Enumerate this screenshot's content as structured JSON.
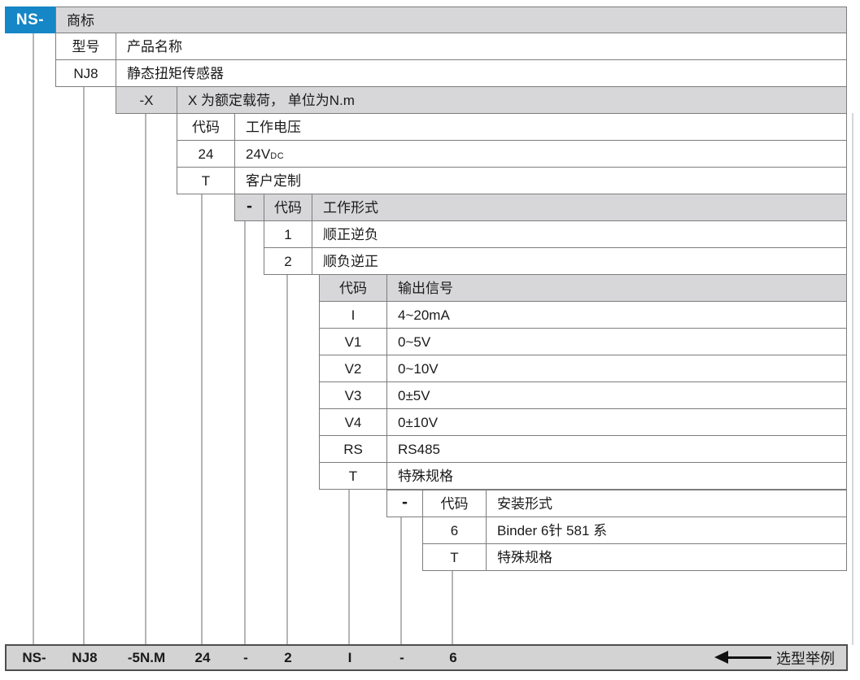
{
  "colors": {
    "accent_blue": "#1586c6",
    "header_gray": "#d7d7d9",
    "bar_gray": "#d3d3d3",
    "border_gray": "#7d7d7d",
    "connector_gray": "#b3b6b9",
    "text": "#1a1a1a"
  },
  "diagram": {
    "tables": [
      {
        "id": "trademark",
        "rows": [
          {
            "c": "NS-",
            "d": "商标"
          }
        ]
      },
      {
        "id": "model",
        "rows": [
          {
            "c": "型号",
            "d": "产品名称"
          },
          {
            "c": "NJ8",
            "d": "静态扭矩传感器"
          }
        ]
      },
      {
        "id": "rated-load",
        "rows": [
          {
            "c": "-X",
            "d": "X 为额定载荷， 单位为N.m"
          }
        ]
      },
      {
        "id": "supply-voltage",
        "rows": [
          {
            "c": "代码",
            "d": "工作电压"
          },
          {
            "c": "24",
            "d": "24V",
            "sub": "DC"
          },
          {
            "c": "T",
            "d": "客户定制"
          }
        ]
      },
      {
        "id": "work-mode",
        "rows": [
          {
            "dash": "-",
            "c": "代码",
            "d": "工作形式"
          },
          {
            "c": "1",
            "d": "顺正逆负"
          },
          {
            "c": "2",
            "d": "顺负逆正"
          }
        ]
      },
      {
        "id": "output-signal",
        "rows": [
          {
            "c": "代码",
            "d": "输出信号"
          },
          {
            "c": "I",
            "d": "4~20mA"
          },
          {
            "c": "V1",
            "d": "0~5V"
          },
          {
            "c": "V2",
            "d": "0~10V"
          },
          {
            "c": "V3",
            "d": "0±5V"
          },
          {
            "c": "V4",
            "d": "0±10V"
          },
          {
            "c": "RS",
            "d": "RS485"
          },
          {
            "c": "T",
            "d": "特殊规格"
          }
        ]
      },
      {
        "id": "mounting",
        "rows": [
          {
            "dash": "-",
            "c": "代码",
            "d": "安装形式"
          },
          {
            "c": "6",
            "d": "Binder 6针 581 系"
          },
          {
            "c": "T",
            "d": "特殊规格"
          }
        ]
      }
    ],
    "example_bar": {
      "items": [
        "NS-",
        "NJ8",
        "-5N.M",
        "24",
        "-",
        "2",
        "I",
        "-",
        "6"
      ],
      "label": "选型举例"
    }
  }
}
